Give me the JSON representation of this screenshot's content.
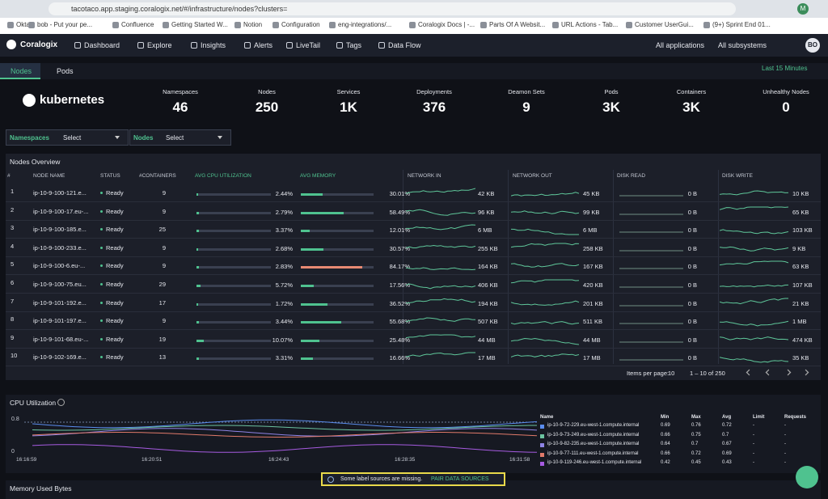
{
  "browser": {
    "url": "tacotaco.app.staging.coralogix.net/#/infrastructure/nodes?clusters=",
    "avatar": "M",
    "bookmarks": [
      "Okta",
      "bob - Put your pe...",
      "Confluence",
      "Getting Started W...",
      "Notion",
      "Configuration",
      "eng-integrations/...",
      "Coralogix Docs | -...",
      "Parts Of A Websit...",
      "URL Actions - Tab...",
      "Customer UserGui...",
      "(9+) Sprint End 01..."
    ]
  },
  "nav": {
    "brand": "Coralogix",
    "items": [
      "Dashboard",
      "Explore",
      "Insights",
      "Alerts",
      "LiveTail",
      "Tags",
      "Data Flow"
    ],
    "applications": "All applications",
    "subsystems": "All subsystems",
    "user": "BO"
  },
  "tabs": [
    "Nodes",
    "Pods"
  ],
  "time_range": "Last 15 Minutes",
  "summary": {
    "logo": "kubernetes",
    "stats": [
      {
        "label": "Namespaces",
        "value": "46"
      },
      {
        "label": "Nodes",
        "value": "250"
      },
      {
        "label": "Services",
        "value": "1K"
      },
      {
        "label": "Deployments",
        "value": "376"
      },
      {
        "label": "Deamon Sets",
        "value": "9"
      },
      {
        "label": "Pods",
        "value": "3K"
      },
      {
        "label": "Containers",
        "value": "3K"
      },
      {
        "label": "Unhealthy Nodes",
        "value": "0"
      }
    ]
  },
  "filters": [
    {
      "label": "Namespaces",
      "placeholder": "Select"
    },
    {
      "label": "Nodes",
      "placeholder": "Select"
    }
  ],
  "nodes_table": {
    "title": "Nodes Overview",
    "columns": [
      "#",
      "NODE NAME",
      "STATUS",
      "#CONTAINERS",
      "AVG CPU UTILIZATION",
      "AVG MEMORY",
      "NETWORK IN",
      "NETWORK OUT",
      "DISK READ",
      "DISK WRITE"
    ],
    "rows": [
      [
        "1",
        "ip-10-9-100-121.e...",
        "Ready",
        "9",
        "2.44%",
        "30.01%",
        "42 KB",
        "45 KB",
        "0 B",
        "10 KB"
      ],
      [
        "2",
        "ip-10-9-100-17.eu-...",
        "Ready",
        "9",
        "2.79%",
        "58.49%",
        "96 KB",
        "99 KB",
        "0 B",
        "65 KB"
      ],
      [
        "3",
        "ip-10-9-100-185.e...",
        "Ready",
        "25",
        "3.37%",
        "12.01%",
        "6 MB",
        "6 MB",
        "0 B",
        "103 KB"
      ],
      [
        "4",
        "ip-10-9-100-233.e...",
        "Ready",
        "9",
        "2.68%",
        "30.57%",
        "255 KB",
        "258 KB",
        "0 B",
        "9 KB"
      ],
      [
        "5",
        "ip-10-9-100-6.eu-...",
        "Ready",
        "9",
        "2.83%",
        "84.17%",
        "164 KB",
        "167 KB",
        "0 B",
        "63 KB"
      ],
      [
        "6",
        "ip-10-9-100-75.eu...",
        "Ready",
        "29",
        "5.72%",
        "17.56%",
        "406 KB",
        "420 KB",
        "0 B",
        "107 KB"
      ],
      [
        "7",
        "ip-10-9-101-192.e...",
        "Ready",
        "17",
        "1.72%",
        "36.52%",
        "194 KB",
        "201 KB",
        "0 B",
        "21 KB"
      ],
      [
        "8",
        "ip-10-9-101-197.e...",
        "Ready",
        "9",
        "3.44%",
        "55.68%",
        "507 KB",
        "511 KB",
        "0 B",
        "1 MB"
      ],
      [
        "9",
        "ip-10-9-101-68.eu-...",
        "Ready",
        "19",
        "10.07%",
        "25.48%",
        "44 MB",
        "44 MB",
        "0 B",
        "474 KB"
      ],
      [
        "10",
        "ip-10-9-102-169.e...",
        "Ready",
        "13",
        "3.31%",
        "16.66%",
        "17 MB",
        "17 MB",
        "0 B",
        "35 KB"
      ]
    ],
    "footer": {
      "items_per_page_label": "Items per page:",
      "items_per_page": "10",
      "range": "1 – 10 of 250"
    }
  },
  "cpu": {
    "title": "CPU Utilization",
    "yticks": [
      "0.8",
      "0"
    ],
    "xticks": [
      "16:16:59",
      "16:20:51",
      "16:24:43",
      "16:28:35",
      "16:31:58"
    ],
    "legend_columns": [
      "Name",
      "Min",
      "Max",
      "Avg",
      "Limit",
      "Requests"
    ],
    "legend": [
      {
        "color": "#5b8def",
        "cells": [
          "ip-10-9-72-229.eu-west-1.compute.internal",
          "0.69",
          "0.76",
          "0.72",
          "-",
          "-"
        ]
      },
      {
        "color": "#6cc3a0",
        "cells": [
          "ip-10-9-73-249.eu-west-1.compute.internal",
          "0.66",
          "0.75",
          "0.7",
          "-",
          "-"
        ]
      },
      {
        "color": "#8f84e6",
        "cells": [
          "ip-10-9-82-235.eu-west-1.compute.internal",
          "0.64",
          "0.7",
          "0.67",
          "-",
          "-"
        ]
      },
      {
        "color": "#e07a6a",
        "cells": [
          "ip-10-9-77-111.eu-west-1.compute.internal",
          "0.66",
          "0.72",
          "0.69",
          "-",
          "-"
        ]
      },
      {
        "color": "#a65be0",
        "cells": [
          "ip-10-9-119-246.eu-west-1.compute.internal",
          "0.42",
          "0.45",
          "0.43",
          "-",
          "-"
        ]
      }
    ]
  },
  "toast": {
    "message": "Some label sources are missing.",
    "action": "PAIR DATA SOURCES"
  },
  "memory": {
    "title": "Memory Used Bytes"
  }
}
